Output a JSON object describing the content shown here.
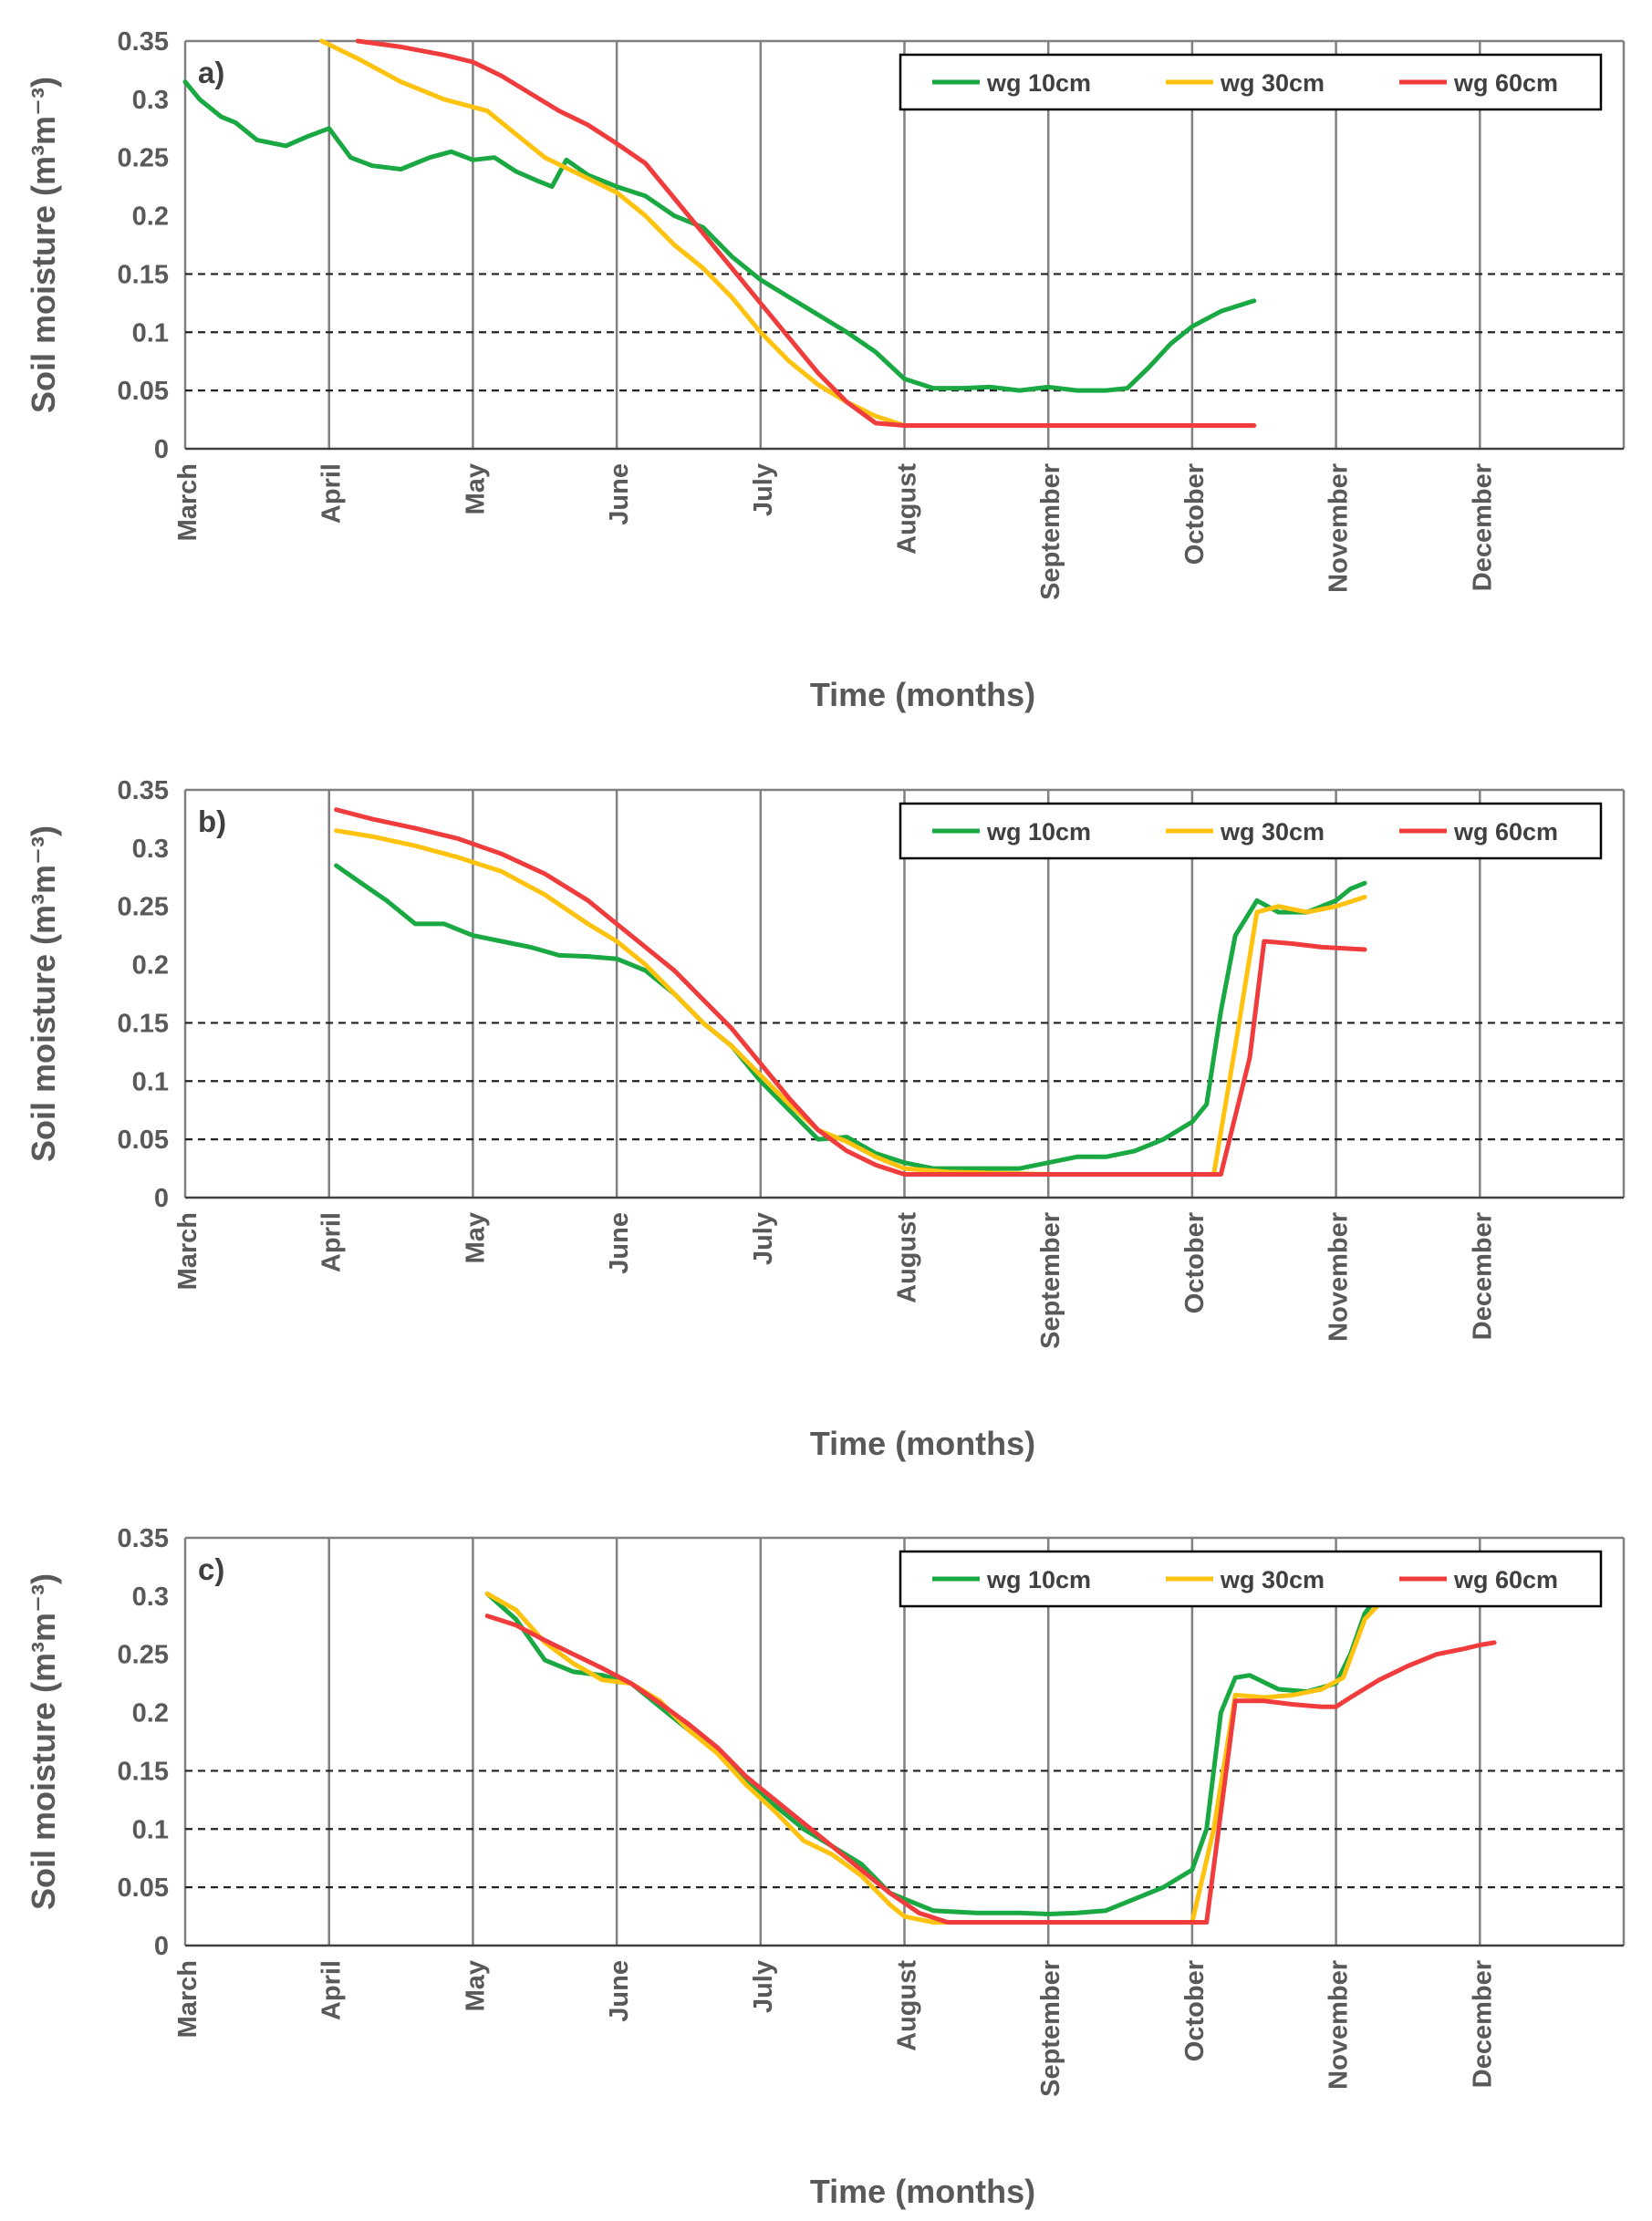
{
  "chart_data": [
    {
      "type": "line",
      "panel_label": "a)",
      "xlabel": "Time (months)",
      "ylabel": "Soil moisture (m³m⁻³)",
      "ylim": [
        0,
        0.35
      ],
      "y_ticks": [
        "0",
        "0.05",
        "0.1",
        "0.15",
        "0.2",
        "0.25",
        "0.3",
        "0.35"
      ],
      "x_categories": [
        "March",
        "April",
        "May",
        "June",
        "July",
        "August",
        "September",
        "October",
        "November",
        "December"
      ],
      "reference_lines": [
        0.05,
        0.1,
        0.15
      ],
      "legend_position": "top-right",
      "series": [
        {
          "name": "wg 10cm",
          "color": "#1aa843",
          "x": [
            0,
            0.1,
            0.25,
            0.35,
            0.5,
            0.7,
            0.85,
            1.0,
            1.15,
            1.3,
            1.5,
            1.7,
            1.85,
            2.0,
            2.15,
            2.3,
            2.45,
            2.55,
            2.65,
            2.8,
            3.0,
            3.2,
            3.4,
            3.6,
            3.8,
            4.0,
            4.2,
            4.4,
            4.6,
            4.8,
            5.0,
            5.2,
            5.4,
            5.6,
            5.8,
            6.0,
            6.2,
            6.4,
            6.55,
            6.7,
            6.85,
            7.0,
            7.2,
            7.43
          ],
          "y": [
            0.315,
            0.3,
            0.285,
            0.28,
            0.265,
            0.26,
            0.268,
            0.275,
            0.25,
            0.243,
            0.24,
            0.25,
            0.255,
            0.248,
            0.25,
            0.238,
            0.23,
            0.225,
            0.248,
            0.235,
            0.225,
            0.217,
            0.2,
            0.19,
            0.165,
            0.145,
            0.13,
            0.115,
            0.1,
            0.083,
            0.06,
            0.052,
            0.052,
            0.053,
            0.05,
            0.053,
            0.05,
            0.05,
            0.052,
            0.07,
            0.09,
            0.105,
            0.118,
            0.127
          ]
        },
        {
          "name": "wg 30cm",
          "color": "#ffc20e",
          "x": [
            0.95,
            1.2,
            1.5,
            1.8,
            2.1,
            2.3,
            2.5,
            2.8,
            3.0,
            3.2,
            3.4,
            3.6,
            3.8,
            4.0,
            4.2,
            4.4,
            4.6,
            4.8,
            5.0,
            5.2,
            5.4,
            5.6,
            5.8,
            6.0,
            6.5,
            7.0,
            7.43
          ],
          "y": [
            0.35,
            0.335,
            0.315,
            0.3,
            0.29,
            0.27,
            0.25,
            0.232,
            0.22,
            0.2,
            0.175,
            0.155,
            0.13,
            0.1,
            0.075,
            0.055,
            0.04,
            0.028,
            0.02,
            0.02,
            0.02,
            0.02,
            0.02,
            0.02,
            0.02,
            0.02,
            0.02
          ]
        },
        {
          "name": "wg 60cm",
          "color": "#f03c3c",
          "x": [
            1.2,
            1.5,
            1.8,
            2.0,
            2.2,
            2.4,
            2.6,
            2.8,
            3.0,
            3.2,
            3.4,
            3.6,
            3.8,
            4.0,
            4.2,
            4.4,
            4.6,
            4.8,
            5.0,
            5.2,
            5.6,
            6.0,
            6.5,
            7.0,
            7.43
          ],
          "y": [
            0.35,
            0.345,
            0.338,
            0.332,
            0.32,
            0.305,
            0.29,
            0.278,
            0.262,
            0.245,
            0.215,
            0.185,
            0.155,
            0.125,
            0.095,
            0.065,
            0.04,
            0.022,
            0.02,
            0.02,
            0.02,
            0.02,
            0.02,
            0.02,
            0.02
          ]
        }
      ]
    },
    {
      "type": "line",
      "panel_label": "b)",
      "xlabel": "Time (months)",
      "ylabel": "Soil moisture (m³m⁻³)",
      "ylim": [
        0,
        0.35
      ],
      "y_ticks": [
        "0",
        "0.05",
        "0.1",
        "0.15",
        "0.2",
        "0.25",
        "0.3",
        "0.35"
      ],
      "x_categories": [
        "March",
        "April",
        "May",
        "June",
        "July",
        "August",
        "September",
        "October",
        "November",
        "December"
      ],
      "reference_lines": [
        0.05,
        0.1,
        0.15
      ],
      "legend_position": "top-right",
      "series": [
        {
          "name": "wg 10cm",
          "color": "#1aa843",
          "x": [
            1.05,
            1.2,
            1.4,
            1.6,
            1.8,
            2.0,
            2.2,
            2.4,
            2.6,
            2.8,
            3.0,
            3.2,
            3.4,
            3.6,
            3.8,
            4.0,
            4.2,
            4.4,
            4.6,
            4.8,
            5.0,
            5.2,
            5.5,
            5.8,
            6.0,
            6.2,
            6.4,
            6.6,
            6.8,
            7.0,
            7.1,
            7.2,
            7.3,
            7.45,
            7.6,
            7.8,
            8.0,
            8.1,
            8.2
          ],
          "y": [
            0.285,
            0.272,
            0.255,
            0.235,
            0.235,
            0.225,
            0.22,
            0.215,
            0.208,
            0.207,
            0.205,
            0.195,
            0.175,
            0.15,
            0.13,
            0.1,
            0.075,
            0.05,
            0.052,
            0.038,
            0.03,
            0.025,
            0.025,
            0.025,
            0.03,
            0.035,
            0.035,
            0.04,
            0.05,
            0.065,
            0.08,
            0.16,
            0.225,
            0.255,
            0.245,
            0.245,
            0.255,
            0.265,
            0.27
          ]
        },
        {
          "name": "wg 30cm",
          "color": "#ffc20e",
          "x": [
            1.05,
            1.3,
            1.6,
            1.9,
            2.2,
            2.5,
            2.8,
            3.0,
            3.2,
            3.4,
            3.6,
            3.8,
            4.0,
            4.2,
            4.4,
            4.6,
            4.8,
            5.0,
            5.3,
            6.0,
            6.5,
            7.0,
            7.15,
            7.3,
            7.45,
            7.6,
            7.8,
            8.0,
            8.2
          ],
          "y": [
            0.315,
            0.31,
            0.302,
            0.292,
            0.28,
            0.26,
            0.235,
            0.22,
            0.2,
            0.175,
            0.15,
            0.13,
            0.105,
            0.08,
            0.058,
            0.048,
            0.035,
            0.025,
            0.022,
            0.02,
            0.02,
            0.02,
            0.02,
            0.13,
            0.245,
            0.25,
            0.245,
            0.25,
            0.258
          ]
        },
        {
          "name": "wg 60cm",
          "color": "#f03c3c",
          "x": [
            1.05,
            1.3,
            1.6,
            1.9,
            2.2,
            2.5,
            2.8,
            3.0,
            3.2,
            3.4,
            3.6,
            3.8,
            4.0,
            4.2,
            4.4,
            4.6,
            4.8,
            5.0,
            5.3,
            6.0,
            6.5,
            7.0,
            7.2,
            7.4,
            7.5,
            7.7,
            7.9,
            8.2
          ],
          "y": [
            0.333,
            0.325,
            0.317,
            0.308,
            0.295,
            0.278,
            0.255,
            0.235,
            0.215,
            0.195,
            0.17,
            0.145,
            0.115,
            0.085,
            0.058,
            0.04,
            0.028,
            0.02,
            0.02,
            0.02,
            0.02,
            0.02,
            0.02,
            0.12,
            0.22,
            0.218,
            0.215,
            0.213
          ]
        }
      ]
    },
    {
      "type": "line",
      "panel_label": "c)",
      "xlabel": "Time (months)",
      "ylabel": "Soil moisture (m³m⁻³)",
      "ylim": [
        0,
        0.35
      ],
      "y_ticks": [
        "0",
        "0.05",
        "0.1",
        "0.15",
        "0.2",
        "0.25",
        "0.3",
        "0.35"
      ],
      "x_categories": [
        "March",
        "April",
        "May",
        "June",
        "July",
        "August",
        "September",
        "October",
        "November",
        "December"
      ],
      "reference_lines": [
        0.05,
        0.1,
        0.15
      ],
      "legend_position": "top-right",
      "series": [
        {
          "name": "wg 10cm",
          "color": "#1aa843",
          "x": [
            2.1,
            2.3,
            2.5,
            2.7,
            2.9,
            3.1,
            3.3,
            3.5,
            3.7,
            3.9,
            4.1,
            4.3,
            4.5,
            4.7,
            4.9,
            5.2,
            5.5,
            5.8,
            6.0,
            6.2,
            6.4,
            6.6,
            6.8,
            7.0,
            7.1,
            7.2,
            7.3,
            7.4,
            7.6,
            7.8,
            8.0,
            8.1,
            8.2,
            8.35
          ],
          "y": [
            0.302,
            0.28,
            0.245,
            0.235,
            0.232,
            0.225,
            0.205,
            0.185,
            0.168,
            0.14,
            0.12,
            0.1,
            0.085,
            0.07,
            0.045,
            0.03,
            0.028,
            0.028,
            0.027,
            0.028,
            0.03,
            0.04,
            0.05,
            0.065,
            0.1,
            0.2,
            0.23,
            0.232,
            0.22,
            0.218,
            0.225,
            0.25,
            0.285,
            0.31
          ]
        },
        {
          "name": "wg 30cm",
          "color": "#ffc20e",
          "x": [
            2.1,
            2.3,
            2.5,
            2.7,
            2.9,
            3.1,
            3.3,
            3.5,
            3.7,
            3.9,
            4.1,
            4.3,
            4.5,
            4.7,
            4.9,
            5.0,
            5.2,
            5.5,
            6.0,
            6.5,
            7.0,
            7.15,
            7.3,
            7.5,
            7.7,
            7.9,
            8.05,
            8.2,
            8.35
          ],
          "y": [
            0.302,
            0.288,
            0.26,
            0.242,
            0.228,
            0.225,
            0.21,
            0.185,
            0.165,
            0.138,
            0.115,
            0.09,
            0.078,
            0.06,
            0.035,
            0.025,
            0.02,
            0.02,
            0.02,
            0.02,
            0.02,
            0.1,
            0.215,
            0.213,
            0.215,
            0.22,
            0.23,
            0.28,
            0.3
          ]
        },
        {
          "name": "wg 60cm",
          "color": "#f03c3c",
          "x": [
            2.1,
            2.3,
            2.5,
            2.7,
            2.9,
            3.1,
            3.3,
            3.5,
            3.7,
            3.9,
            4.1,
            4.3,
            4.5,
            4.7,
            4.9,
            5.1,
            5.3,
            5.5,
            6.0,
            6.5,
            7.0,
            7.1,
            7.3,
            7.5,
            7.7,
            7.9,
            8.0,
            8.1,
            8.3,
            8.5,
            8.7,
            8.9,
            9.0,
            9.1
          ],
          "y": [
            0.283,
            0.275,
            0.262,
            0.25,
            0.238,
            0.225,
            0.208,
            0.19,
            0.17,
            0.145,
            0.125,
            0.105,
            0.085,
            0.065,
            0.045,
            0.028,
            0.02,
            0.02,
            0.02,
            0.02,
            0.02,
            0.02,
            0.21,
            0.21,
            0.207,
            0.205,
            0.205,
            0.213,
            0.228,
            0.24,
            0.25,
            0.255,
            0.258,
            0.26
          ]
        }
      ]
    }
  ]
}
